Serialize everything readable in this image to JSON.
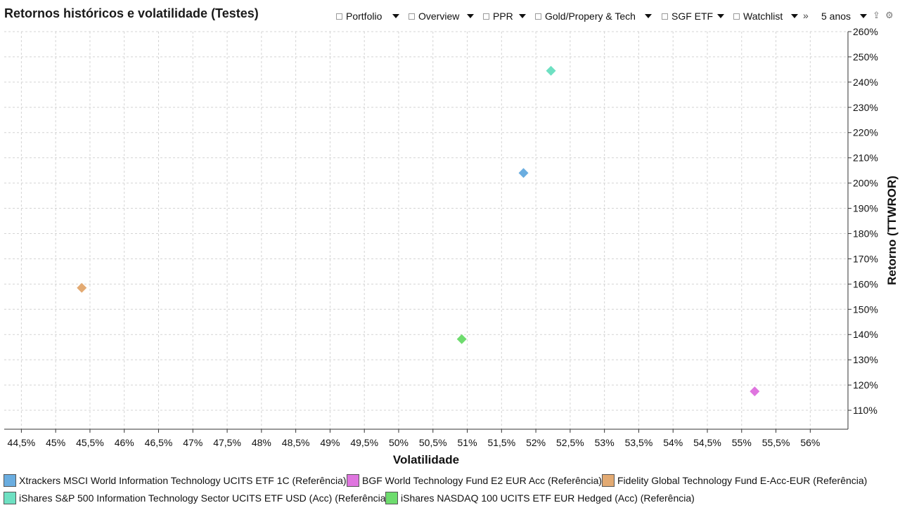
{
  "header": {
    "title": "Retornos históricos e volatilidade (Testes)"
  },
  "toolbar": {
    "items": [
      {
        "label": "Portfolio"
      },
      {
        "label": "Overview"
      },
      {
        "label": "PPR"
      },
      {
        "label": "Gold/Propery & Tech"
      },
      {
        "label": "SGF ETF"
      },
      {
        "label": "Watchlist"
      }
    ],
    "more_icon": "double-chevron-right-icon",
    "period_label": "5 anos",
    "export_icon": "export-icon",
    "settings_icon": "gear-icon"
  },
  "chart_data": {
    "type": "scatter",
    "title": "Retornos históricos e volatilidade (Testes)",
    "xlabel": "Volatilidade",
    "ylabel": "Retorno (TTWROR)",
    "xlim": [
      44.25,
      56.55
    ],
    "ylim": [
      102.5,
      260
    ],
    "x_ticks": [
      "44,5%",
      "45%",
      "45,5%",
      "46%",
      "46,5%",
      "47%",
      "47,5%",
      "48%",
      "48,5%",
      "49%",
      "49,5%",
      "50%",
      "50,5%",
      "51%",
      "51,5%",
      "52%",
      "52,5%",
      "53%",
      "53,5%",
      "54%",
      "54,5%",
      "55%",
      "55,5%",
      "56%"
    ],
    "x_tick_values": [
      44.5,
      45,
      45.5,
      46,
      46.5,
      47,
      47.5,
      48,
      48.5,
      49,
      49.5,
      50,
      50.5,
      51,
      51.5,
      52,
      52.5,
      53,
      53.5,
      54,
      54.5,
      55,
      55.5,
      56
    ],
    "y_ticks": [
      "110%",
      "120%",
      "130%",
      "140%",
      "150%",
      "160%",
      "170%",
      "180%",
      "190%",
      "200%",
      "210%",
      "220%",
      "230%",
      "240%",
      "250%",
      "260%"
    ],
    "y_tick_values": [
      110,
      120,
      130,
      140,
      150,
      160,
      170,
      180,
      190,
      200,
      210,
      220,
      230,
      240,
      250,
      260
    ],
    "grid": true,
    "y_axis_position": "right",
    "legend_position": "bottom",
    "marker": "diamond",
    "series": [
      {
        "name": "Xtrackers MSCI World Information Technology UCITS ETF 1C (Referência)",
        "color": "#6aade0",
        "x": 51.82,
        "y": 204.0
      },
      {
        "name": "BGF World Technology Fund E2 EUR Acc (Referência)",
        "color": "#df75df",
        "x": 55.19,
        "y": 117.5
      },
      {
        "name": "Fidelity Global Technology Fund E-Acc-EUR (Referência)",
        "color": "#e3aa72",
        "x": 45.38,
        "y": 158.5
      },
      {
        "name": "iShares S&P 500 Information Technology Sector UCITS ETF USD (Acc) (Referência)",
        "color": "#6ee0c2",
        "x": 52.22,
        "y": 244.5
      },
      {
        "name": "iShares NASDAQ 100 UCITS ETF EUR Hedged (Acc) (Referência)",
        "color": "#6edc6e",
        "x": 50.92,
        "y": 138.2
      }
    ]
  }
}
